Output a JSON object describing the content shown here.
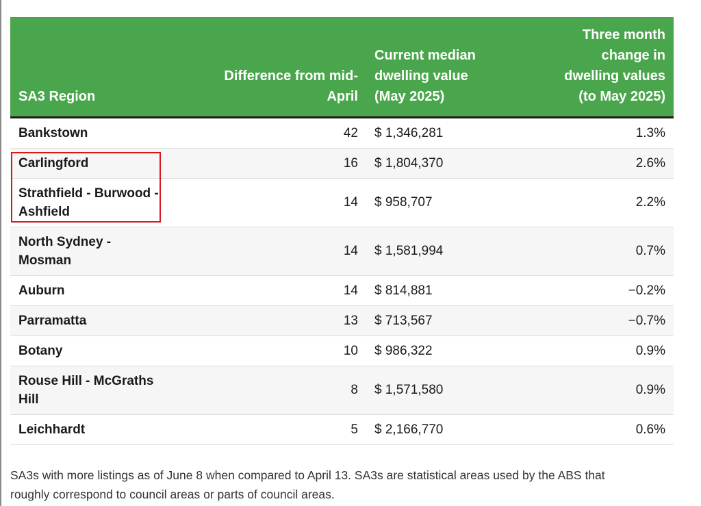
{
  "table": {
    "headers": {
      "region_line1": "SA3 Region",
      "diff_line1": "Difference from mid-",
      "diff_line2": "April",
      "value_line1": "Current median",
      "value_line2": "dwelling value",
      "value_line3": "(May 2025)",
      "change_line1": "Three month",
      "change_line2": "change in",
      "change_line3": "dwelling values",
      "change_line4": "(to May 2025)"
    },
    "rows": [
      {
        "region_line1": "Bankstown",
        "region_line2": "",
        "difference": "42",
        "value": "$ 1,346,281",
        "change": "1.3%"
      },
      {
        "region_line1": "Carlingford",
        "region_line2": "",
        "difference": "16",
        "value": "$ 1,804,370",
        "change": "2.6%"
      },
      {
        "region_line1": "Strathfield - Burwood -",
        "region_line2": "Ashfield",
        "difference": "14",
        "value": "$ 958,707",
        "change": "2.2%"
      },
      {
        "region_line1": "North Sydney -",
        "region_line2": "Mosman",
        "difference": "14",
        "value": "$ 1,581,994",
        "change": "0.7%"
      },
      {
        "region_line1": "Auburn",
        "region_line2": "",
        "difference": "14",
        "value": "$ 814,881",
        "change": "−0.2%"
      },
      {
        "region_line1": "Parramatta",
        "region_line2": "",
        "difference": "13",
        "value": "$ 713,567",
        "change": "−0.7%"
      },
      {
        "region_line1": "Botany",
        "region_line2": "",
        "difference": "10",
        "value": "$ 986,322",
        "change": "0.9%"
      },
      {
        "region_line1": "Rouse Hill - McGraths",
        "region_line2": "Hill",
        "difference": "8",
        "value": "$ 1,571,580",
        "change": "0.9%"
      },
      {
        "region_line1": "Leichhardt",
        "region_line2": "",
        "difference": "5",
        "value": "$ 2,166,770",
        "change": "0.6%"
      }
    ]
  },
  "footnote": {
    "line1": "SA3s with more listings as of June 8 when compared to April 13. SA3s are statistical areas used by the ABS that",
    "line2": "roughly correspond to council areas or parts of council areas."
  },
  "colors": {
    "header_bg": "#4aa64c",
    "highlight_border": "#d7191f"
  }
}
